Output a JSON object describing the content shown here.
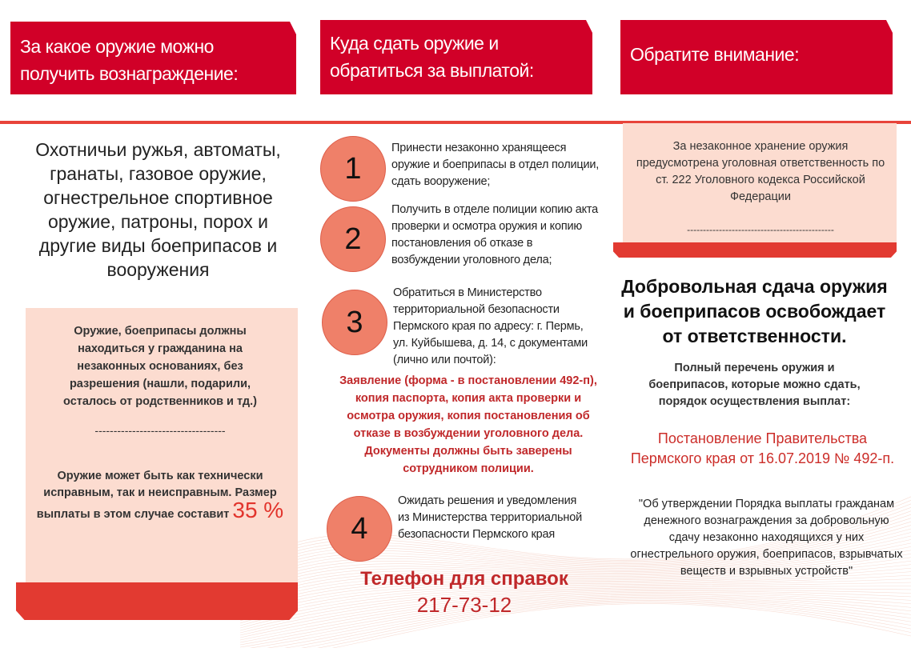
{
  "headers": [
    "За какое оружие можно получить вознаграждение:",
    "Куда сдать оружие и обратиться за выплатой:",
    "Обратите внимание:"
  ],
  "left": {
    "title": "Охотничьи ружья, автоматы, гранаты, газовое оружие, огнестрельное спортивное оружие, патроны, порох и другие виды боеприпасов и вооружения",
    "note1": "Оружие, боеприпасы должны находиться у гражданина на незаконных основаниях, без разрешения (нашли, подарили, осталось от родственников и тд.)",
    "divider": "-----------------------------------",
    "note2": "Оружие может быть как технически исправным, так и неисправным. Размер выплаты в этом случае составит",
    "percent": "35 %"
  },
  "middle": {
    "steps": [
      {
        "num": "1",
        "text": "Принести  незаконно хранящееся оружие и боеприпасы в отдел полиции, сдать вооружение;"
      },
      {
        "num": "2",
        "text": "Получить в отделе полиции копию акта проверки и осмотра оружия и копию постановления об отказе в возбуждении уголовного дела;"
      },
      {
        "num": "3",
        "text": "Обратиться в Министерство территориальной безопасности Пермского края по адресу: г. Пермь, ул. Куйбышева, д. 14,  с документами (лично или почтой):"
      },
      {
        "num": "4",
        "text": "Ожидать решения и уведомления из Министерства территориальной безопасности Пермского края"
      }
    ],
    "documents": "Заявление (форма - в постановлении 492-п),   копия паспорта,    копия акта проверки и осмотра оружия, копия постановления об отказе в возбуждении уголовного дела. Документы должны быть заверены сотрудником полиции.",
    "phone_label": "Телефон для справок",
    "phone": "217-73-12"
  },
  "right": {
    "warning": "За незаконное хранение оружия предусмотрена уголовная ответственность по ст. 222 Уголовного кодекса Российской Федерации",
    "divider": "----------------------------------------------",
    "headline": "Добровольная сдача оружия и боеприпасов освобождает от ответственности.",
    "list_intro": "Полный перечень оружия и боеприпасов, которые можно сдать, порядок осуществления выплат:",
    "decree": "Постановление Правительства Пермского края от 16.07.2019 № 492-п.",
    "decree_title": "\"Об утверждении Порядка выплаты гражданам денежного вознаграждения за добровольную сдачу незаконно находящихся у них огнестрельного оружия, боеприпасов, взрывчатых веществ и взрывных устройств\""
  },
  "colors": {
    "header": "#d10028",
    "accent": "#e23a31",
    "pink": "#fcdcd0",
    "circle": "#ef8069",
    "red_text": "#c0282a"
  }
}
